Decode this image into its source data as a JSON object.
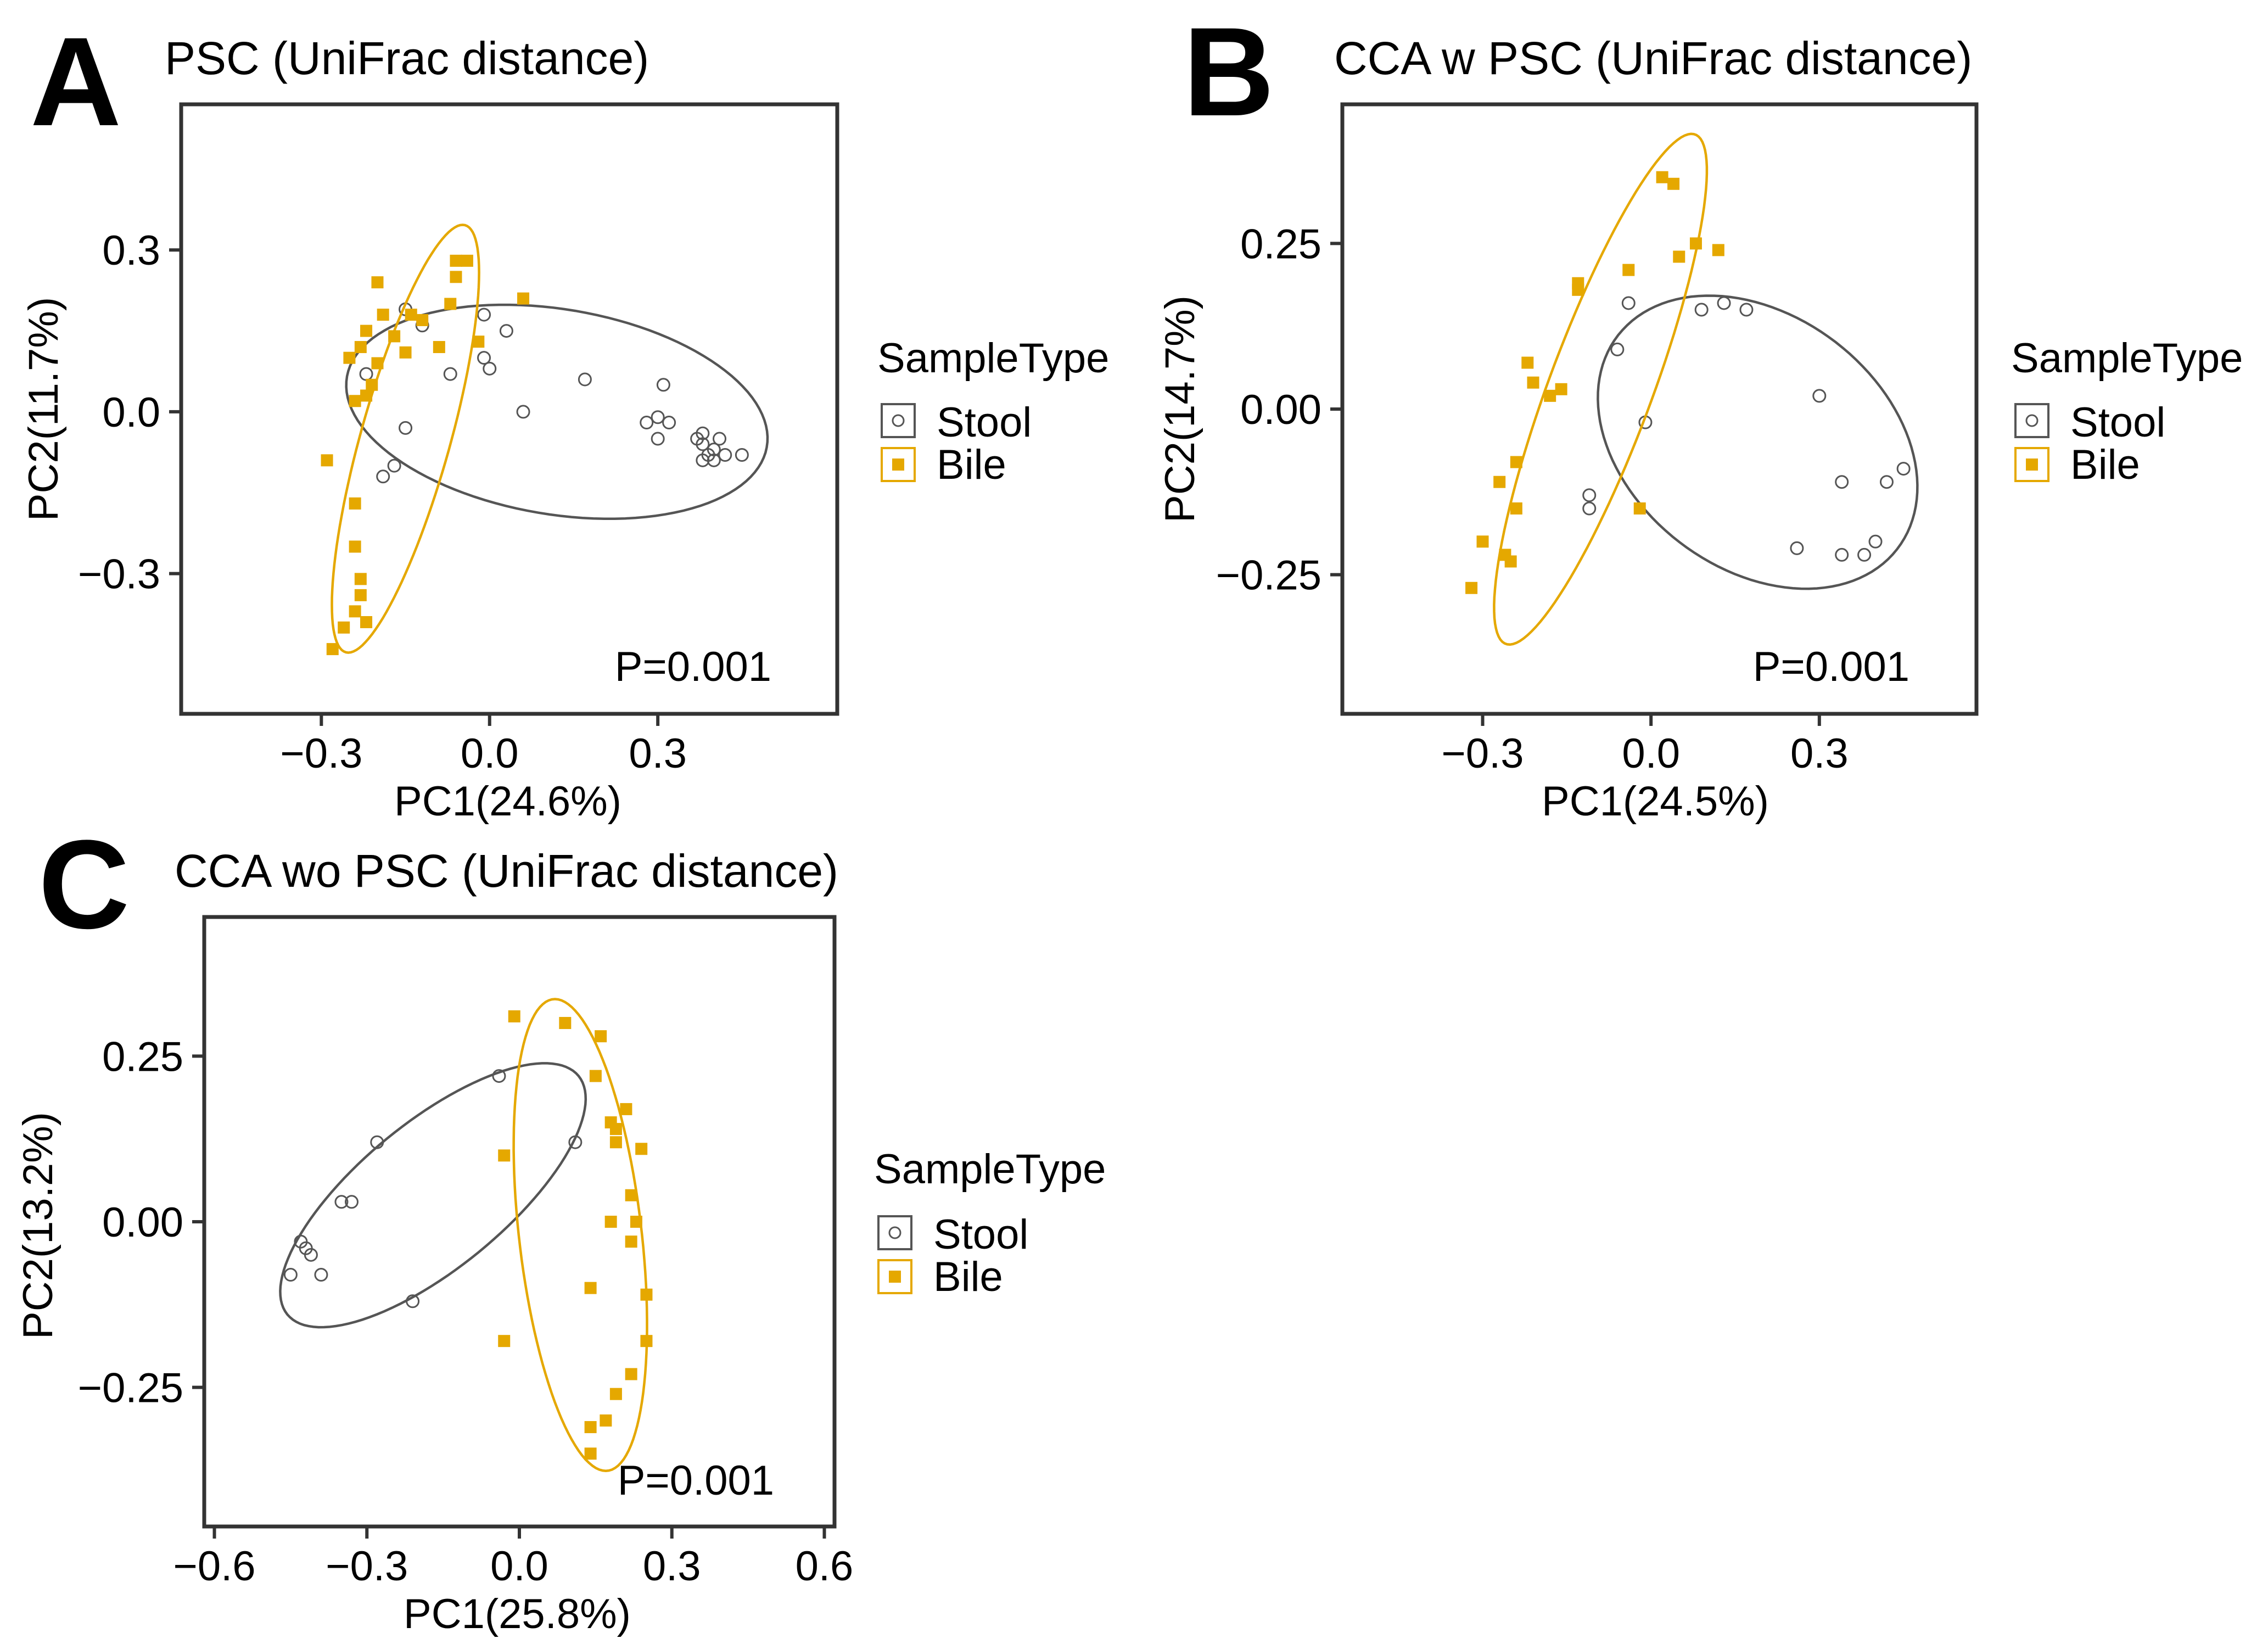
{
  "colors": {
    "stool": "#555555",
    "bile": "#E5A800",
    "frame": "#333333"
  },
  "legend": {
    "title": "SampleType",
    "items": [
      "Stool",
      "Bile"
    ]
  },
  "chart_data": [
    {
      "id": "A",
      "type": "scatter",
      "panel_label": "A",
      "title": "PSC (UniFrac distance)",
      "xlabel": "PC1(24.6%)",
      "ylabel": "PC2(11.7%)",
      "xlim": [
        -0.55,
        0.62
      ],
      "ylim": [
        -0.56,
        0.57
      ],
      "xticks": [
        -0.3,
        0.0,
        0.3
      ],
      "yticks": [
        -0.3,
        0.0,
        0.3
      ],
      "xtick_labels": [
        "−0.3",
        "0.0",
        "0.3"
      ],
      "ytick_labels": [
        "−0.3",
        "0.0",
        "0.3"
      ],
      "annotation": "P=0.001",
      "series": [
        {
          "name": "Stool",
          "points": [
            [
              -0.15,
              0.19
            ],
            [
              -0.12,
              0.16
            ],
            [
              -0.22,
              0.07
            ],
            [
              -0.15,
              -0.03
            ],
            [
              -0.17,
              -0.1
            ],
            [
              -0.19,
              -0.12
            ],
            [
              -0.07,
              0.07
            ],
            [
              -0.01,
              0.18
            ],
            [
              -0.01,
              0.1
            ],
            [
              0.0,
              0.08
            ],
            [
              0.03,
              0.15
            ],
            [
              0.06,
              0.0
            ],
            [
              0.17,
              0.06
            ],
            [
              0.28,
              -0.02
            ],
            [
              0.3,
              -0.01
            ],
            [
              0.31,
              0.05
            ],
            [
              0.32,
              -0.02
            ],
            [
              0.3,
              -0.05
            ],
            [
              0.37,
              -0.05
            ],
            [
              0.38,
              -0.04
            ],
            [
              0.38,
              -0.06
            ],
            [
              0.39,
              -0.08
            ],
            [
              0.4,
              -0.07
            ],
            [
              0.41,
              -0.05
            ],
            [
              0.42,
              -0.08
            ],
            [
              0.4,
              -0.09
            ],
            [
              0.38,
              -0.09
            ],
            [
              0.45,
              -0.08
            ]
          ],
          "ellipse": {
            "cx": 0.12,
            "cy": 0.0,
            "rx": 0.38,
            "ry": 0.19,
            "angle_deg": -10
          }
        },
        {
          "name": "Bile",
          "points": [
            [
              -0.2,
              0.24
            ],
            [
              -0.19,
              0.18
            ],
            [
              -0.22,
              0.15
            ],
            [
              -0.25,
              0.1
            ],
            [
              -0.23,
              0.12
            ],
            [
              -0.17,
              0.14
            ],
            [
              -0.14,
              0.18
            ],
            [
              -0.12,
              0.17
            ],
            [
              -0.15,
              0.11
            ],
            [
              -0.2,
              0.09
            ],
            [
              -0.21,
              0.05
            ],
            [
              -0.24,
              0.02
            ],
            [
              -0.22,
              0.03
            ],
            [
              -0.07,
              0.2
            ],
            [
              -0.06,
              0.25
            ],
            [
              -0.06,
              0.28
            ],
            [
              -0.04,
              0.28
            ],
            [
              -0.09,
              0.12
            ],
            [
              -0.02,
              0.13
            ],
            [
              0.06,
              0.21
            ],
            [
              -0.29,
              -0.09
            ],
            [
              -0.24,
              -0.17
            ],
            [
              -0.24,
              -0.25
            ],
            [
              -0.23,
              -0.31
            ],
            [
              -0.23,
              -0.34
            ],
            [
              -0.24,
              -0.37
            ],
            [
              -0.22,
              -0.39
            ],
            [
              -0.26,
              -0.4
            ],
            [
              -0.28,
              -0.44
            ]
          ],
          "ellipse": {
            "cx": -0.15,
            "cy": -0.05,
            "rx": 0.41,
            "ry": 0.08,
            "angle_deg": 75
          }
        }
      ]
    },
    {
      "id": "B",
      "type": "scatter",
      "panel_label": "B",
      "title": "CCA w PSC (UniFrac distance)",
      "xlabel": "PC1(24.5%)",
      "ylabel": "PC2(14.7%)",
      "xlim": [
        -0.55,
        0.58
      ],
      "ylim": [
        -0.46,
        0.46
      ],
      "xticks": [
        -0.3,
        0.0,
        0.3
      ],
      "yticks": [
        -0.25,
        0.0,
        0.25
      ],
      "xtick_labels": [
        "−0.3",
        "0.0",
        "0.3"
      ],
      "ytick_labels": [
        "−0.25",
        "0.00",
        "0.25"
      ],
      "annotation": "P=0.001",
      "series": [
        {
          "name": "Stool",
          "points": [
            [
              -0.04,
              0.16
            ],
            [
              0.09,
              0.15
            ],
            [
              0.13,
              0.16
            ],
            [
              0.17,
              0.15
            ],
            [
              -0.06,
              0.09
            ],
            [
              -0.01,
              -0.02
            ],
            [
              -0.11,
              -0.13
            ],
            [
              -0.11,
              -0.15
            ],
            [
              0.3,
              0.02
            ],
            [
              0.34,
              -0.11
            ],
            [
              0.42,
              -0.11
            ],
            [
              0.45,
              -0.09
            ],
            [
              0.26,
              -0.21
            ],
            [
              0.34,
              -0.22
            ],
            [
              0.38,
              -0.22
            ],
            [
              0.4,
              -0.2
            ]
          ],
          "ellipse": {
            "cx": 0.19,
            "cy": -0.05,
            "rx": 0.3,
            "ry": 0.2,
            "angle_deg": -25
          }
        },
        {
          "name": "Bile",
          "points": [
            [
              0.02,
              0.35
            ],
            [
              0.04,
              0.34
            ],
            [
              0.05,
              0.23
            ],
            [
              0.08,
              0.25
            ],
            [
              0.12,
              0.24
            ],
            [
              -0.04,
              0.21
            ],
            [
              -0.13,
              0.19
            ],
            [
              -0.13,
              0.18
            ],
            [
              -0.22,
              0.07
            ],
            [
              -0.21,
              0.04
            ],
            [
              -0.18,
              0.02
            ],
            [
              -0.16,
              0.03
            ],
            [
              -0.27,
              -0.11
            ],
            [
              -0.24,
              -0.08
            ],
            [
              -0.24,
              -0.15
            ],
            [
              -0.3,
              -0.2
            ],
            [
              -0.26,
              -0.22
            ],
            [
              -0.25,
              -0.23
            ],
            [
              -0.32,
              -0.27
            ],
            [
              -0.02,
              -0.15
            ]
          ],
          "ellipse": {
            "cx": -0.09,
            "cy": 0.03,
            "rx": 0.42,
            "ry": 0.09,
            "angle_deg": 66
          }
        }
      ]
    },
    {
      "id": "C",
      "type": "scatter",
      "panel_label": "C",
      "title": "CCA wo PSC (UniFrac distance)",
      "xlabel": "PC1(25.8%)",
      "ylabel": "PC2(13.2%)",
      "xlim": [
        -0.62,
        0.62
      ],
      "ylim": [
        -0.46,
        0.46
      ],
      "xticks": [
        -0.6,
        -0.3,
        0.0,
        0.3,
        0.6
      ],
      "yticks": [
        -0.25,
        0.0,
        0.25
      ],
      "xtick_labels": [
        "−0.6",
        "−0.3",
        "0.0",
        "0.3",
        "0.6"
      ],
      "ytick_labels": [
        "−0.25",
        "0.00",
        "0.25"
      ],
      "annotation": "P=0.001",
      "series": [
        {
          "name": "Stool",
          "points": [
            [
              -0.04,
              0.22
            ],
            [
              -0.28,
              0.12
            ],
            [
              -0.35,
              0.03
            ],
            [
              -0.33,
              0.03
            ],
            [
              0.11,
              0.12
            ],
            [
              -0.43,
              -0.03
            ],
            [
              -0.42,
              -0.04
            ],
            [
              -0.41,
              -0.05
            ],
            [
              -0.39,
              -0.08
            ],
            [
              -0.45,
              -0.08
            ],
            [
              -0.21,
              -0.12
            ]
          ],
          "ellipse": {
            "cx": -0.17,
            "cy": 0.04,
            "rx": 0.34,
            "ry": 0.12,
            "angle_deg": 30
          }
        },
        {
          "name": "Bile",
          "points": [
            [
              -0.01,
              0.31
            ],
            [
              0.09,
              0.3
            ],
            [
              0.16,
              0.28
            ],
            [
              0.15,
              0.22
            ],
            [
              0.18,
              0.15
            ],
            [
              0.19,
              0.14
            ],
            [
              0.19,
              0.12
            ],
            [
              0.21,
              0.17
            ],
            [
              0.24,
              0.11
            ],
            [
              0.22,
              0.04
            ],
            [
              0.18,
              0.0
            ],
            [
              0.23,
              0.0
            ],
            [
              0.22,
              -0.03
            ],
            [
              0.14,
              -0.1
            ],
            [
              0.25,
              -0.11
            ],
            [
              0.25,
              -0.18
            ],
            [
              0.22,
              -0.23
            ],
            [
              0.19,
              -0.26
            ],
            [
              0.17,
              -0.3
            ],
            [
              0.14,
              -0.31
            ],
            [
              0.14,
              -0.35
            ],
            [
              -0.03,
              -0.18
            ],
            [
              -0.03,
              0.1
            ]
          ],
          "ellipse": {
            "cx": 0.12,
            "cy": -0.02,
            "rx": 0.36,
            "ry": 0.12,
            "angle_deg": -81
          }
        }
      ]
    }
  ]
}
